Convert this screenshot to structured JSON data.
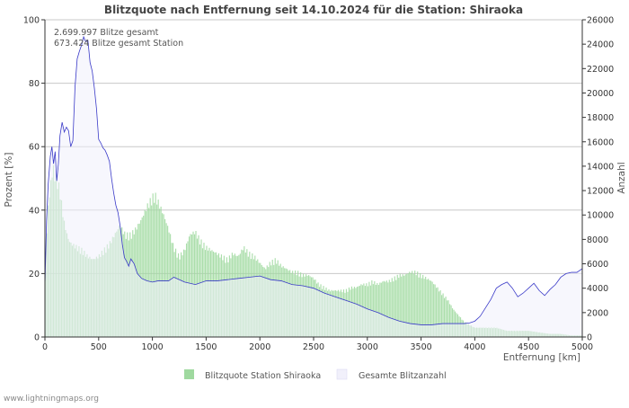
{
  "chart_data": {
    "type": "area",
    "title": "Blitzquote nach Entfernung seit 14.10.2024 für die Station: Shiraoka",
    "stats": [
      "2.699.997 Blitze gesamt",
      "673.424 Blitze gesamt Station"
    ],
    "xlabel": "Entfernung   [km]",
    "ylabel_left": "Prozent   [%]",
    "ylabel_right": "Anzahl",
    "xlim": [
      0,
      5000
    ],
    "ylim_left": [
      0,
      100
    ],
    "ylim_right": [
      0,
      26000
    ],
    "x_ticks": [
      0,
      500,
      1000,
      1500,
      2000,
      2500,
      3000,
      3500,
      4000,
      4500,
      5000
    ],
    "y_left_ticks": [
      0,
      20,
      40,
      60,
      80,
      100
    ],
    "y_right_ticks": [
      0,
      2000,
      4000,
      6000,
      8000,
      10000,
      12000,
      14000,
      16000,
      18000,
      20000,
      22000,
      24000,
      26000
    ],
    "grid": true,
    "legend_position": "bottom",
    "series": [
      {
        "name": "Blitzquote Station Shiraoka",
        "axis": "left",
        "color": "#9fd99f",
        "x": [
          0,
          25,
          50,
          75,
          100,
          125,
          150,
          175,
          200,
          225,
          250,
          300,
          350,
          400,
          450,
          500,
          550,
          600,
          650,
          700,
          750,
          800,
          850,
          900,
          950,
          1000,
          1025,
          1050,
          1100,
          1150,
          1200,
          1250,
          1300,
          1350,
          1400,
          1450,
          1500,
          1550,
          1600,
          1650,
          1700,
          1750,
          1800,
          1850,
          1900,
          1950,
          2000,
          2050,
          2100,
          2150,
          2200,
          2250,
          2300,
          2350,
          2400,
          2450,
          2500,
          2550,
          2600,
          2650,
          2700,
          2750,
          2800,
          2850,
          2900,
          2950,
          3000,
          3050,
          3100,
          3150,
          3200,
          3250,
          3300,
          3350,
          3400,
          3450,
          3500,
          3550,
          3600,
          3650,
          3700,
          3750,
          3800,
          3850,
          3900,
          3950,
          4000,
          4050,
          4100,
          4200,
          4300,
          4400,
          4500,
          4600,
          4700,
          4800,
          4900,
          5000
        ],
        "values": [
          15,
          40,
          48,
          55,
          52,
          50,
          45,
          38,
          34,
          31,
          30,
          29,
          28,
          26,
          25,
          26,
          28,
          30,
          33,
          36,
          33,
          33,
          35,
          38,
          42,
          45,
          46,
          44,
          40,
          35,
          29,
          26,
          28,
          33,
          34,
          31,
          29,
          28,
          27,
          26,
          25,
          27,
          26,
          29,
          27,
          26,
          24,
          22,
          24,
          25,
          23,
          22,
          21,
          21,
          20,
          20,
          19,
          17,
          16,
          15,
          15,
          15,
          15,
          16,
          16,
          17,
          17,
          18,
          17,
          18,
          18,
          19,
          20,
          20,
          21,
          21,
          20,
          19,
          18,
          16,
          14,
          12,
          9,
          7,
          5,
          4,
          3,
          3,
          3,
          3,
          2,
          2,
          2,
          1.5,
          1,
          1,
          0.5,
          0.5
        ]
      },
      {
        "name": "Gesamte Blitzanzahl",
        "axis": "right",
        "color": "#3a3ac8",
        "fill": "#f1f0fb",
        "x": [
          0,
          15,
          30,
          50,
          65,
          80,
          95,
          110,
          125,
          140,
          160,
          180,
          200,
          220,
          240,
          260,
          280,
          300,
          320,
          340,
          360,
          380,
          400,
          420,
          440,
          460,
          480,
          500,
          520,
          540,
          560,
          580,
          600,
          620,
          640,
          660,
          680,
          700,
          720,
          740,
          760,
          780,
          800,
          830,
          860,
          900,
          950,
          1000,
          1050,
          1100,
          1150,
          1200,
          1300,
          1400,
          1500,
          1600,
          1700,
          1800,
          1900,
          2000,
          2100,
          2200,
          2300,
          2400,
          2500,
          2600,
          2700,
          2800,
          2900,
          3000,
          3100,
          3200,
          3300,
          3400,
          3500,
          3600,
          3700,
          3800,
          3900,
          3950,
          4000,
          4050,
          4100,
          4150,
          4200,
          4250,
          4300,
          4350,
          4400,
          4450,
          4500,
          4550,
          4600,
          4650,
          4700,
          4750,
          4800,
          4850,
          4900,
          4950,
          5000
        ],
        "values": [
          4200,
          9500,
          12500,
          14800,
          15600,
          14200,
          15200,
          12800,
          14200,
          16500,
          17600,
          16800,
          17200,
          16900,
          15600,
          16100,
          20500,
          22800,
          23400,
          23900,
          24600,
          24200,
          24300,
          22500,
          21800,
          20400,
          18700,
          16200,
          15900,
          15500,
          15300,
          14900,
          14400,
          13000,
          11800,
          10800,
          10200,
          9100,
          7600,
          6500,
          6200,
          5800,
          6400,
          6000,
          5200,
          4800,
          4600,
          4500,
          4600,
          4600,
          4600,
          4900,
          4500,
          4300,
          4600,
          4600,
          4700,
          4800,
          4900,
          5000,
          4700,
          4600,
          4300,
          4200,
          4000,
          3600,
          3300,
          3000,
          2700,
          2300,
          2000,
          1600,
          1300,
          1100,
          1000,
          1000,
          1100,
          1100,
          1100,
          1150,
          1300,
          1700,
          2400,
          3100,
          4000,
          4300,
          4500,
          4000,
          3300,
          3600,
          4000,
          4400,
          3800,
          3400,
          3900,
          4300,
          4900,
          5200,
          5300,
          5300,
          5600
        ]
      }
    ]
  },
  "footer": "www.lightningmaps.org"
}
